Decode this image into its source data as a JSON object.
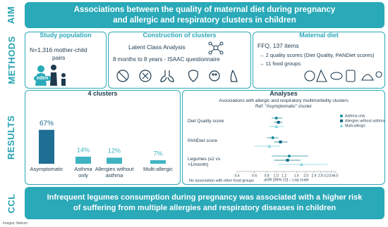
{
  "sections": {
    "aim": "AIM",
    "methods": "METHODS",
    "results": "RESULTS",
    "ccl": "CCL"
  },
  "aim": {
    "line1": "Associations between the quality of maternal diet during pregnancy",
    "line2": "and allergic and respiratory clusters in children"
  },
  "study_population": {
    "title": "Study population",
    "line1": "N=1,316 mother-child",
    "line2": "pairs",
    "logo": "eden"
  },
  "clusters_construction": {
    "title": "Construction of clusters",
    "method": "Latent Class Analysis",
    "period": "8 months to 8 years - ISAAC questionnaire"
  },
  "maternal_diet": {
    "title": "Maternal diet",
    "ffq": "FFQ, 137 items",
    "item1": "2 quality scores (Diet Quality, PANDiet scores)",
    "item2": "11 food groups"
  },
  "clusters_chart": {
    "type": "bar",
    "title": "4 clusters",
    "categories": [
      "Asymptomatic",
      "Asthma only",
      "Allergies without asthma",
      "Multi-allergic"
    ],
    "values": [
      67,
      14,
      12,
      7
    ],
    "value_labels": [
      "67%",
      "14%",
      "12%",
      "7%"
    ],
    "colors": [
      "#1f6e95",
      "#3fb3c1",
      "#3fb3c1",
      "#3fb3c1"
    ]
  },
  "forest_chart": {
    "type": "forest",
    "title": "Analyses",
    "subtitle": "Associations with allergic and respiratory multimorbidity clusters",
    "reference": "Ref: \"Asymptomatic\" cluster",
    "categories": [
      "Diet Quality score",
      "PANDiet score",
      "Legumes (≤1 vs >1/month)"
    ],
    "series": [
      {
        "name": "Asthma only",
        "color": "#1a8c9b",
        "marker": "circle",
        "values": [
          1.0,
          0.92,
          1.35
        ],
        "lower": [
          0.9,
          0.8,
          0.9
        ],
        "upper": [
          1.15,
          1.05,
          2.1
        ]
      },
      {
        "name": "Allergies without asthma",
        "color": "#0e6b85",
        "marker": "square",
        "values": [
          1.05,
          1.1,
          1.3
        ],
        "lower": [
          0.95,
          0.95,
          0.95
        ],
        "upper": [
          1.15,
          1.3,
          1.75
        ]
      },
      {
        "name": "Multi-allergic",
        "color": "#7fd3dc",
        "marker": "triangle",
        "values": [
          1.0,
          0.85,
          1.8
        ],
        "lower": [
          0.85,
          0.6,
          1.05
        ],
        "upper": [
          1.2,
          1.1,
          3.3
        ]
      }
    ],
    "xlabel": "aOR [95% CI] – Log scale",
    "log_scale": true,
    "xlim": [
      0.4,
      {
        "value": 4,
        "label": "4.0"
      }
    ],
    "xticks": [
      0.4,
      0.6,
      0.8,
      {
        "value": 1,
        "label": "1.0"
      },
      1.2,
      1.6,
      {
        "value": 2,
        "label": "2.0"
      },
      2.4,
      2.8,
      3.2,
      3.6,
      {
        "value": 4,
        "label": "4.0"
      }
    ],
    "note": "No association with other food groups"
  },
  "conclusion": {
    "line1": "Infrequent legumes consumption during pregnancy was associated with a higher risk",
    "line2": "of suffering from multiple allergies and respiratory diseases in children"
  },
  "credit": "Images: flaticon"
}
